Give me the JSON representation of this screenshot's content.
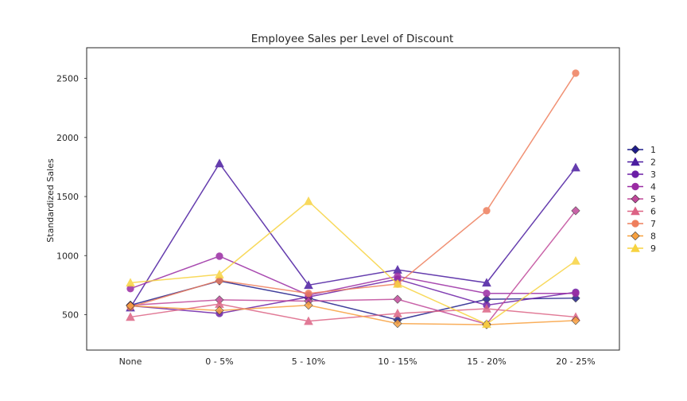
{
  "chart_data": {
    "type": "line",
    "title": "Employee Sales per Level of Discount",
    "xlabel": "",
    "ylabel": "Standardized Sales",
    "categories": [
      "None",
      "0 - 5%",
      "5 - 10%",
      "10 - 15%",
      "15 - 20%",
      "20 - 25%"
    ],
    "ylim": [
      200,
      2760
    ],
    "yticks": [
      500,
      1000,
      1500,
      2000,
      2500
    ],
    "grid": false,
    "legend_position": "right",
    "series": [
      {
        "name": "1",
        "marker": "diamond",
        "color": "#1f1d8a",
        "values": [
          580,
          785,
          640,
          455,
          630,
          640
        ]
      },
      {
        "name": "2",
        "marker": "triangle",
        "color": "#4b1ca0",
        "values": [
          560,
          1780,
          750,
          880,
          770,
          1745
        ]
      },
      {
        "name": "3",
        "marker": "circle",
        "color": "#6c1fa6",
        "values": [
          575,
          510,
          650,
          800,
          580,
          690
        ]
      },
      {
        "name": "4",
        "marker": "circle",
        "color": "#9a2ba3",
        "values": [
          720,
          995,
          665,
          825,
          680,
          680
        ]
      },
      {
        "name": "5",
        "marker": "diamond",
        "color": "#c0489a",
        "values": [
          580,
          625,
          615,
          630,
          420,
          1380
        ]
      },
      {
        "name": "6",
        "marker": "triangle",
        "color": "#dc6384",
        "values": [
          480,
          590,
          445,
          510,
          550,
          480
        ]
      },
      {
        "name": "7",
        "marker": "circle",
        "color": "#ee7e5c",
        "values": [
          565,
          790,
          680,
          760,
          1380,
          2545
        ]
      },
      {
        "name": "8",
        "marker": "diamond",
        "color": "#f8a13f",
        "values": [
          575,
          535,
          580,
          425,
          415,
          450
        ]
      },
      {
        "name": "9",
        "marker": "triangle",
        "color": "#f7d340",
        "values": [
          770,
          840,
          1460,
          760,
          420,
          955
        ]
      }
    ]
  }
}
